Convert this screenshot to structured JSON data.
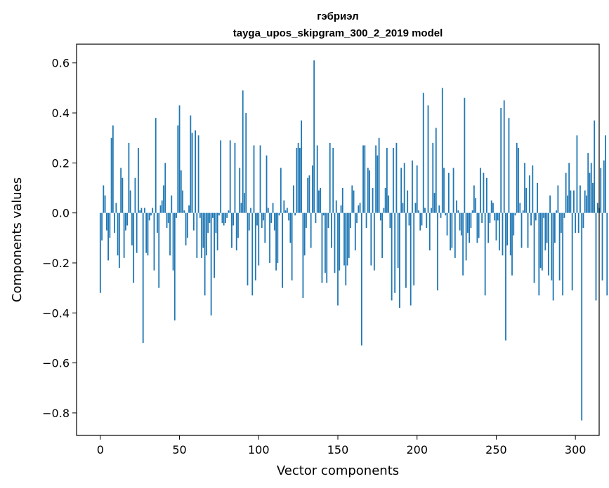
{
  "chart_data": {
    "type": "bar",
    "title": "гэбриэл",
    "subtitle": "tayga_upos_skipgram_300_2_2019 model",
    "xlabel": "Vector components",
    "ylabel": "Components values",
    "xlim": [
      -15,
      315
    ],
    "ylim": [
      -0.89,
      0.675
    ],
    "x_ticks": [
      0,
      50,
      100,
      150,
      200,
      250,
      300
    ],
    "y_ticks": [
      -0.8,
      -0.6,
      -0.4,
      -0.2,
      0.0,
      0.2,
      0.4,
      0.6
    ],
    "y_tick_labels": [
      "−0.8",
      "−0.6",
      "−0.4",
      "−0.2",
      "0.0",
      "0.2",
      "0.4",
      "0.6"
    ],
    "bar_color": "#1f77b4",
    "grid": false,
    "values": [
      -0.32,
      -0.11,
      0.11,
      0.07,
      -0.07,
      -0.19,
      -0.1,
      0.3,
      0.35,
      -0.08,
      0.04,
      -0.17,
      -0.22,
      0.18,
      0.14,
      -0.18,
      -0.07,
      -0.05,
      0.28,
      0.09,
      -0.13,
      -0.28,
      0.14,
      -0.16,
      0.26,
      0.01,
      0.02,
      -0.52,
      0.02,
      -0.16,
      -0.17,
      -0.03,
      -0.01,
      0.02,
      -0.23,
      0.38,
      -0.08,
      -0.3,
      0.03,
      0.05,
      0.11,
      0.2,
      -0.06,
      -0.04,
      -0.17,
      0.07,
      -0.23,
      -0.43,
      -0.02,
      0.35,
      0.43,
      0.17,
      0.09,
      0.01,
      -0.13,
      -0.1,
      0.03,
      0.39,
      0.32,
      -0.07,
      0.33,
      -0.18,
      0.31,
      -0.02,
      -0.18,
      -0.14,
      -0.33,
      -0.17,
      -0.08,
      -0.04,
      -0.41,
      -0.02,
      -0.26,
      -0.08,
      -0.15,
      -0.01,
      0.29,
      -0.04,
      -0.05,
      -0.04,
      -0.02,
      0.01,
      0.29,
      -0.14,
      -0.05,
      0.28,
      -0.15,
      -0.1,
      0.18,
      0.04,
      0.49,
      0.08,
      0.4,
      -0.29,
      -0.07,
      0.02,
      -0.33,
      0.27,
      -0.27,
      -0.05,
      -0.21,
      0.27,
      -0.06,
      -0.03,
      -0.12,
      0.23,
      0.02,
      -0.2,
      -0.04,
      0.04,
      -0.07,
      -0.23,
      -0.2,
      -0.01,
      0.18,
      -0.3,
      0.05,
      0.01,
      0.02,
      -0.03,
      -0.12,
      -0.27,
      0.11,
      -0.01,
      0.26,
      0.28,
      0.26,
      0.37,
      -0.34,
      -0.17,
      -0.06,
      0.14,
      0.15,
      -0.14,
      0.19,
      0.61,
      -0.04,
      0.27,
      0.09,
      0.1,
      -0.28,
      -0.01,
      -0.24,
      -0.28,
      -0.06,
      0.28,
      -0.14,
      0.26,
      -0.24,
      0.05,
      -0.37,
      -0.23,
      0.03,
      0.1,
      -0.21,
      -0.29,
      -0.21,
      -0.18,
      -0.06,
      0.11,
      0.09,
      -0.15,
      -0.04,
      0.03,
      0.04,
      -0.53,
      0.27,
      0.27,
      -0.06,
      0.18,
      0.17,
      -0.21,
      0.1,
      -0.23,
      0.27,
      0.23,
      0.3,
      -0.03,
      -0.18,
      0.02,
      0.1,
      0.26,
      0.07,
      -0.06,
      -0.35,
      0.26,
      -0.32,
      0.28,
      -0.22,
      -0.38,
      0.18,
      0.04,
      0.2,
      -0.3,
      0.09,
      -0.05,
      -0.37,
      0.21,
      -0.29,
      0.04,
      0.19,
      0.01,
      -0.07,
      -0.05,
      0.48,
      0.02,
      -0.06,
      0.43,
      -0.15,
      0.02,
      0.28,
      0.08,
      0.34,
      -0.31,
      0.03,
      -0.02,
      0.5,
      0.18,
      -0.01,
      -0.09,
      0.16,
      -0.15,
      -0.14,
      0.18,
      -0.18,
      0.05,
      0.01,
      -0.07,
      -0.09,
      -0.25,
      0.46,
      -0.19,
      -0.08,
      -0.12,
      -0.06,
      0.01,
      0.11,
      0.06,
      -0.12,
      -0.1,
      0.18,
      -0.04,
      0.16,
      -0.33,
      0.14,
      -0.12,
      -0.04,
      0.05,
      0.04,
      -0.03,
      -0.11,
      -0.03,
      -0.15,
      0.42,
      -0.17,
      0.45,
      -0.51,
      -0.13,
      0.38,
      -0.17,
      -0.25,
      -0.09,
      -0.01,
      0.28,
      0.26,
      0.04,
      -0.14,
      0.01,
      0.2,
      0.1,
      -0.14,
      0.15,
      -0.05,
      0.19,
      -0.28,
      -0.03,
      0.12,
      -0.33,
      -0.22,
      -0.23,
      -0.02,
      -0.15,
      -0.12,
      -0.25,
      0.07,
      -0.27,
      -0.35,
      -0.12,
      0.01,
      0.11,
      -0.27,
      -0.08,
      -0.33,
      -0.02,
      0.16,
      0.07,
      0.2,
      0.09,
      -0.31,
      0.09,
      -0.08,
      0.31,
      -0.08,
      0.11,
      -0.83,
      -0.06,
      0.09,
      0.07,
      0.24,
      0.16,
      0.2,
      0.12,
      0.37,
      -0.35,
      0.04,
      0.02,
      0.18,
      -0.27,
      0.21,
      0.31,
      -0.33
    ]
  }
}
